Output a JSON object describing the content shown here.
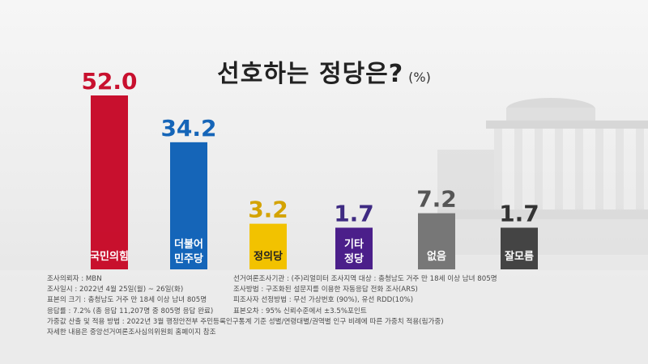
{
  "title": "선호하는 정당은?",
  "unit": "(%)",
  "chart_data": {
    "type": "bar",
    "title": "선호하는 정당은?",
    "unit": "(%)",
    "ylim": [
      0,
      55
    ],
    "categories": [
      "국민의힘",
      "더불어 민주당",
      "정의당",
      "기타 정당",
      "없음",
      "잘모름"
    ],
    "values": [
      52.0,
      34.2,
      3.2,
      1.7,
      7.2,
      1.7
    ],
    "value_labels": [
      "52.0",
      "34.2",
      "3.2",
      "1.7",
      "7.2",
      "1.7"
    ],
    "colors": [
      "#c8102e",
      "#1565b8",
      "#f2c200",
      "#4b1f8a",
      "#777777",
      "#444444"
    ],
    "value_label_colors": [
      "#c8102e",
      "#1565b8",
      "#d4a300",
      "#3e2a82",
      "#555555",
      "#333333"
    ],
    "label_line1": [
      "국민의힘",
      "더불어",
      "정의당",
      "기타",
      "없음",
      "잘모름"
    ],
    "label_line2": [
      "",
      "민주당",
      "",
      "정당",
      "",
      ""
    ],
    "label_text_colors": [
      "#ffffff",
      "#ffffff",
      "#222222",
      "#ffffff",
      "#ffffff",
      "#ffffff"
    ]
  },
  "notes": [
    [
      "조사의뢰자 : MBN",
      "선거여론조사기관 : (주)리얼미터   조사지역 대상 : 충청남도 거주 만 18세 이상 남녀 805명"
    ],
    [
      "조사일시 : 2022년 4월 25일(월) ~ 26일(화)",
      "조사방법 : 구조화된 설문지를 이용한 자동응답 전화 조사(ARS)"
    ],
    [
      "표본의 크기 : 충청남도 거주 만 18세 이상 남녀 805명",
      "피조사자 선정방법 : 무선 가상번호 (90%), 유선 RDD(10%)"
    ],
    [
      "응답률 : 7.2% (총 응답 11,207명 중 805명 응답 완료)",
      "표본오차 : 95% 신뢰수준에서 ±3.5%포인트"
    ],
    [
      "가중값 산출 및 적용 방법 : 2022년 3월 행정안전부 주민등록인구통계 기준 성별/연령대별/권역별 인구 비례에 따른  가중치 적용(림가중)",
      ""
    ],
    [
      "자세한 내용은 중앙선거여론조사심의위원회 홈페이지 참조",
      ""
    ]
  ]
}
